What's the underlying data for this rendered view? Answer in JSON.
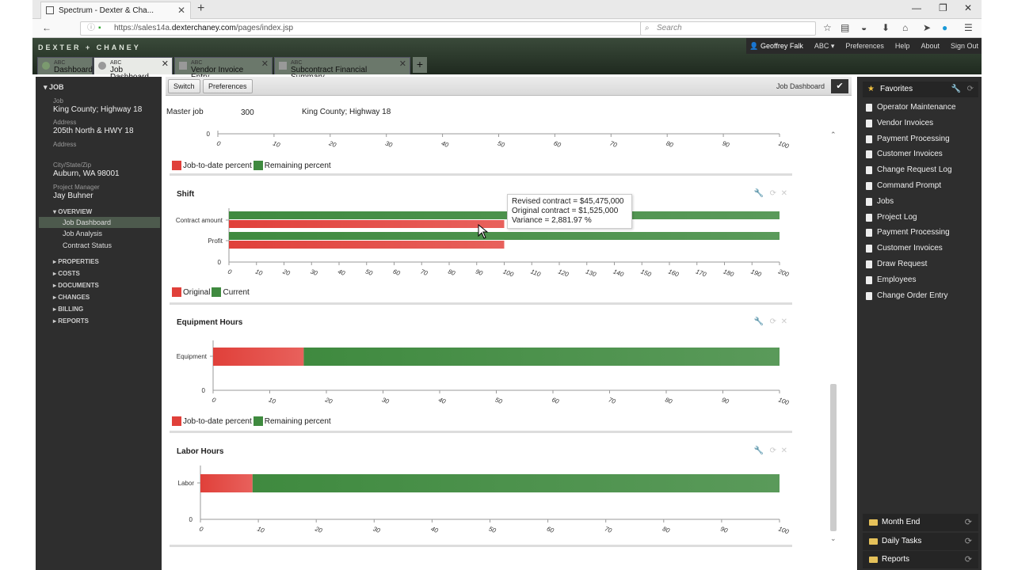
{
  "browser": {
    "tab_title": "Spectrum - Dexter & Cha...",
    "url_prefix": "https://sales14a.",
    "url_domain": "dexterchaney.com",
    "url_path": "/pages/index.jsp",
    "search_placeholder": "Search"
  },
  "header": {
    "logo": "DEXTER + CHANEY",
    "user": "Geoffrey Falk",
    "company": "ABC",
    "links": [
      "Preferences",
      "Help",
      "About",
      "Sign Out"
    ],
    "tabs": [
      {
        "company": "ABC",
        "label": "Dashboard"
      },
      {
        "company": "ABC",
        "label": "Job Dashboard"
      },
      {
        "company": "ABC",
        "label": "Vendor Invoice Entry"
      },
      {
        "company": "ABC",
        "label": "Subcontract Financial Summary"
      }
    ]
  },
  "left": {
    "section": "JOB",
    "job_label": "Job",
    "job_value": "King County; Highway 18",
    "address_label": "Address",
    "address_value": "205th North & HWY 18",
    "address2_label": "Address",
    "city_label": "City/State/Zip",
    "city_value": "Auburn, WA 98001",
    "pm_label": "Project Manager",
    "pm_value": "Jay Buhner",
    "overview": "OVERVIEW",
    "overview_items": [
      "Job Dashboard",
      "Job Analysis",
      "Contract Status"
    ],
    "groups": [
      "PROPERTIES",
      "COSTS",
      "DOCUMENTS",
      "CHANGES",
      "BILLING",
      "REPORTS"
    ]
  },
  "toolbar": {
    "switch": "Switch",
    "preferences": "Preferences",
    "title": "Job Dashboard"
  },
  "master": {
    "label": "Master job",
    "number": "300",
    "name": "King County; Highway 18"
  },
  "charts": {
    "top": {
      "legend": [
        "Job-to-date percent",
        "Remaining percent"
      ]
    },
    "shift": {
      "title": "Shift",
      "legend": [
        "Original",
        "Current"
      ]
    },
    "equip": {
      "title": "Equipment Hours",
      "legend": [
        "Job-to-date percent",
        "Remaining percent"
      ]
    },
    "labor": {
      "title": "Labor Hours"
    }
  },
  "tooltip": {
    "line1": "Revised contract = $45,475,000",
    "line2": "Original contract = $1,525,000",
    "line3": "Variance = 2,881.97 %"
  },
  "colors": {
    "red": "#e0403a",
    "green": "#3f8a3f"
  },
  "chart_data": [
    {
      "type": "bar",
      "orientation": "horizontal",
      "stacked": true,
      "note": "partial (scrolled)",
      "x": [
        0,
        10,
        20,
        30,
        40,
        50,
        60,
        70,
        80,
        90,
        100
      ],
      "ylim": [
        0
      ],
      "legend": [
        "Job-to-date percent",
        "Remaining percent"
      ]
    },
    {
      "type": "bar",
      "orientation": "horizontal",
      "title": "Shift",
      "categories": [
        "Contract amount",
        "Profit"
      ],
      "xlim": [
        0,
        200
      ],
      "x_ticks": [
        0,
        10,
        20,
        30,
        40,
        50,
        60,
        70,
        80,
        90,
        100,
        110,
        120,
        130,
        140,
        150,
        160,
        170,
        180,
        190,
        200
      ],
      "series": [
        {
          "name": "Original",
          "values": [
            100,
            100
          ]
        },
        {
          "name": "Current",
          "values": [
            200,
            200
          ]
        }
      ]
    },
    {
      "type": "bar",
      "orientation": "horizontal",
      "stacked": true,
      "title": "Equipment Hours",
      "categories": [
        "Equipment"
      ],
      "xlim": [
        0,
        100
      ],
      "series": [
        {
          "name": "Job-to-date percent",
          "values": [
            16
          ]
        },
        {
          "name": "Remaining percent",
          "values": [
            84
          ]
        }
      ]
    },
    {
      "type": "bar",
      "orientation": "horizontal",
      "stacked": true,
      "title": "Labor Hours",
      "categories": [
        "Labor"
      ],
      "xlim": [
        0,
        100
      ],
      "series": [
        {
          "name": "Job-to-date percent",
          "values": [
            9
          ]
        },
        {
          "name": "Remaining percent",
          "values": [
            91
          ]
        }
      ]
    }
  ],
  "favorites": {
    "title": "Favorites",
    "items": [
      "Operator Maintenance",
      "Vendor Invoices",
      "Payment Processing",
      "Customer Invoices",
      "Change Request Log",
      "Command Prompt",
      "Jobs",
      "Project Log",
      "Payment Processing",
      "Customer Invoices",
      "Draw Request",
      "Employees",
      "Change Order Entry"
    ],
    "folders": [
      "Month End",
      "Daily Tasks",
      "Reports"
    ]
  }
}
